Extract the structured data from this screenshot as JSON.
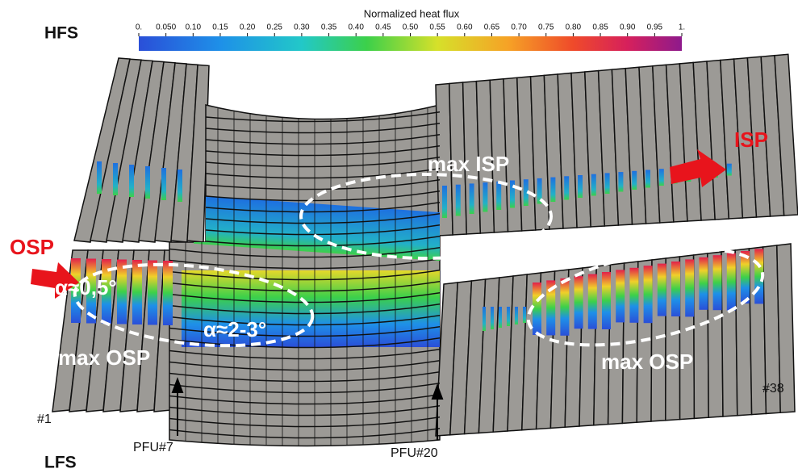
{
  "colorbar": {
    "title": "Normalized heat flux",
    "ticks": [
      {
        "value": 0,
        "label": "0."
      },
      {
        "value": 0.05,
        "label": "0.050"
      },
      {
        "value": 0.1,
        "label": "0.10"
      },
      {
        "value": 0.15,
        "label": "0.15"
      },
      {
        "value": 0.2,
        "label": "0.20"
      },
      {
        "value": 0.25,
        "label": "0.25"
      },
      {
        "value": 0.3,
        "label": "0.30"
      },
      {
        "value": 0.35,
        "label": "0.35"
      },
      {
        "value": 0.4,
        "label": "0.40"
      },
      {
        "value": 0.45,
        "label": "0.45"
      },
      {
        "value": 0.5,
        "label": "0.50"
      },
      {
        "value": 0.55,
        "label": "0.55"
      },
      {
        "value": 0.6,
        "label": "0.60"
      },
      {
        "value": 0.65,
        "label": "0.65"
      },
      {
        "value": 0.7,
        "label": "0.70"
      },
      {
        "value": 0.75,
        "label": "0.75"
      },
      {
        "value": 0.8,
        "label": "0.80"
      },
      {
        "value": 0.85,
        "label": "0.85"
      },
      {
        "value": 0.9,
        "label": "0.90"
      },
      {
        "value": 0.95,
        "label": "0.95"
      },
      {
        "value": 1,
        "label": "1."
      }
    ]
  },
  "labels": {
    "hfs": "HFS",
    "lfs": "LFS",
    "isp": "ISP",
    "osp": "OSP",
    "max_isp": "max ISP",
    "max_osp_left": "max OSP",
    "max_osp_right": "max OSP",
    "alpha_left": "α≈0,5°",
    "alpha_mid": "α≈2-3°",
    "tile_first": "#1",
    "tile_last": "#38",
    "pfu_7": "PFU#7",
    "pfu_20": "PFU#20"
  }
}
